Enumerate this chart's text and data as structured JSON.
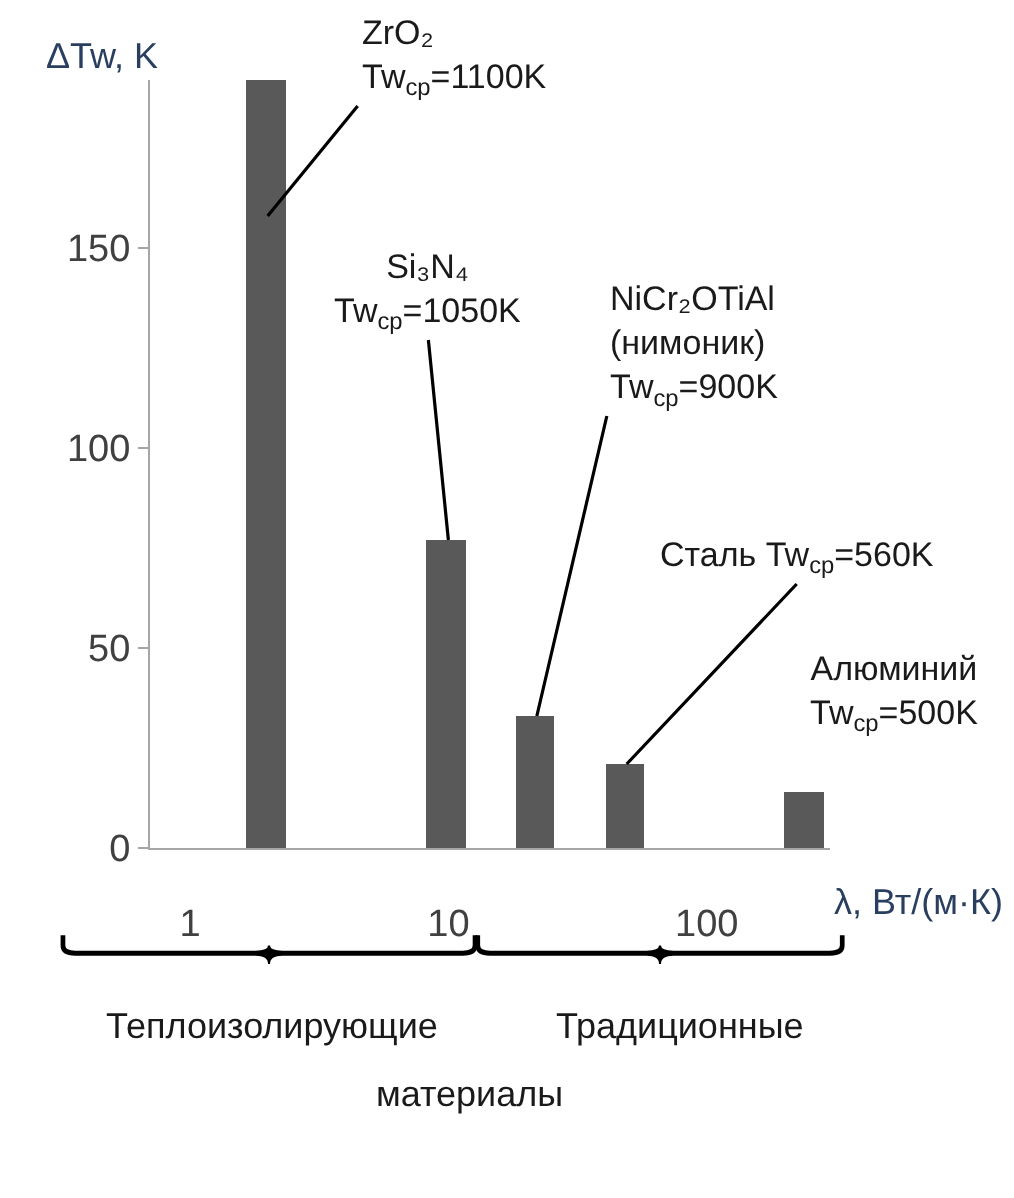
{
  "chart_data": {
    "type": "bar",
    "ylabel": "ΔTw, K",
    "xlabel": "λ, Вт/(м·К)",
    "x": [
      2,
      10,
      22,
      49,
      240
    ],
    "values": [
      192,
      77,
      33,
      21,
      14
    ],
    "color": "#595959",
    "log": "x",
    "xlim": [
      0.7,
      300
    ],
    "xticks": [
      1,
      10,
      100
    ],
    "ylim": [
      0,
      192
    ],
    "yticks": [
      0,
      50,
      100,
      150
    ],
    "annotations": [
      "ZrO₂\nTw$_{cp}$=1100K",
      {
        "text": "Si₃N₄\nTw$_{cp}$=1050K",
        "x": 10,
        "y": 77
      },
      {
        "text": "NiCr₂OTiAl\n(нимоник)\nTw$_{cp}$=900K",
        "x": 22,
        "y": 33
      },
      {
        "text": "Сталь Tw$_{cp}$=560K",
        "x": 49,
        "y": 21
      },
      {
        "text": "Алюминий\nTw$_{cp}$=500K",
        "x": 240,
        "y": 14
      },
      "Теплоизолирующие",
      "Традиционные",
      "материалы"
    ]
  }
}
